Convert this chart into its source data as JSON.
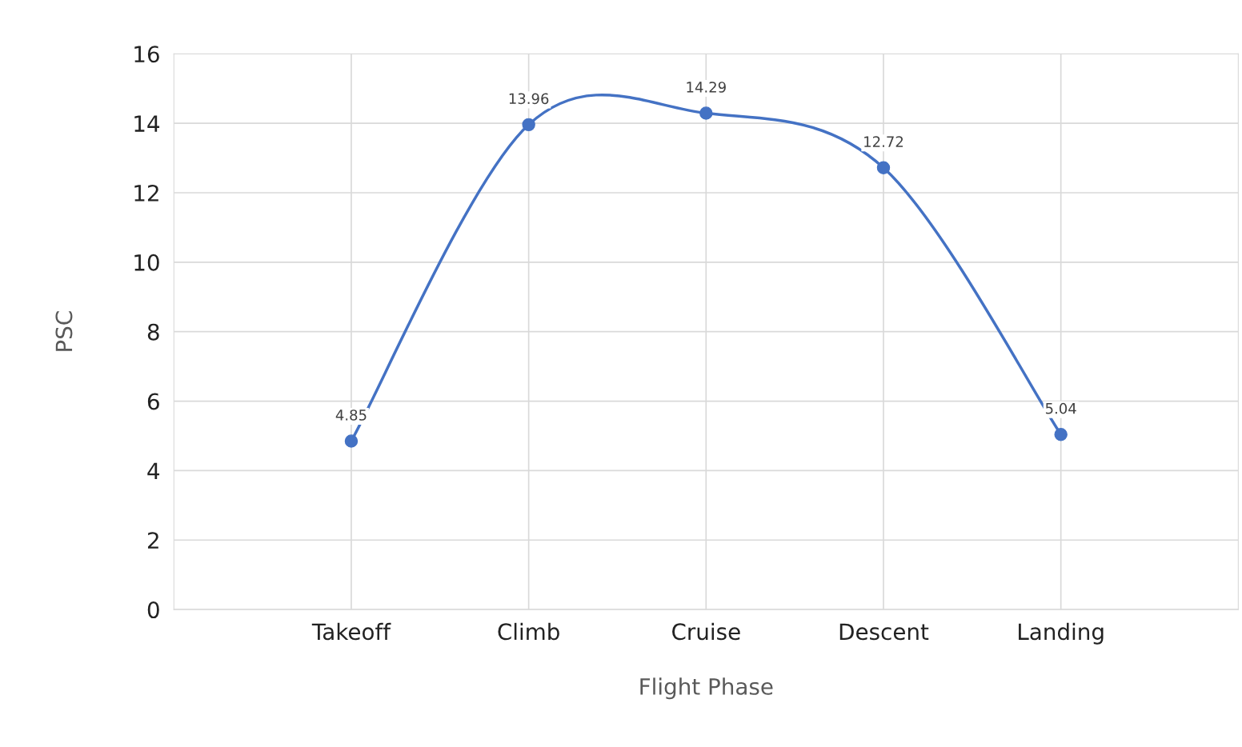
{
  "chart_data": {
    "type": "line",
    "xlabel": "Flight Phase",
    "ylabel": "PSC",
    "categories": [
      "Takeoff",
      "Climb",
      "Cruise",
      "Descent",
      "Landing"
    ],
    "values": [
      4.85,
      13.96,
      14.29,
      12.72,
      5.04
    ],
    "color": "#4472c4",
    "marker": "circle",
    "line_style": "solid",
    "ylim": [
      0,
      16
    ],
    "yticks": [
      0,
      2,
      4,
      6,
      8,
      10,
      12,
      14,
      16
    ],
    "grid": true,
    "data_labels": true
  }
}
